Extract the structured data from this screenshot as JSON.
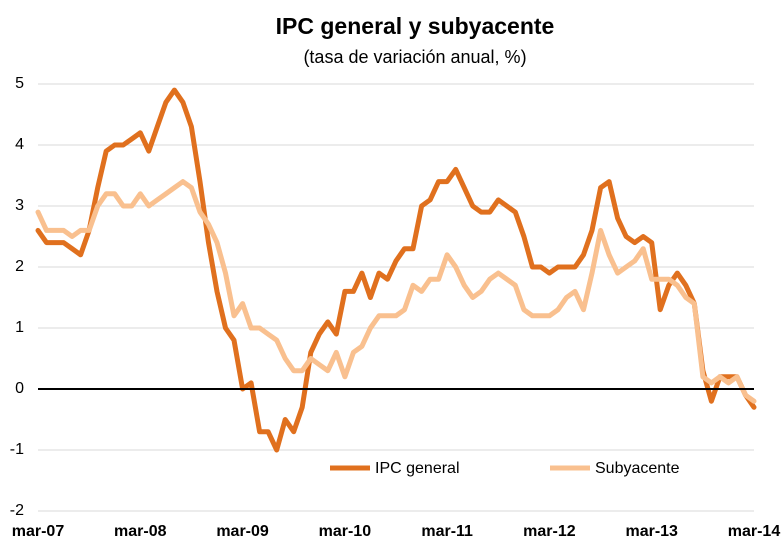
{
  "chart_data": {
    "type": "line",
    "title": "IPC general y subyacente",
    "subtitle": "(tasa de variación anual, %)",
    "categories": [
      "mar-07",
      null,
      null,
      null,
      null,
      null,
      null,
      null,
      null,
      null,
      null,
      null,
      "mar-08",
      null,
      null,
      null,
      null,
      null,
      null,
      null,
      null,
      null,
      null,
      null,
      "mar-09",
      null,
      null,
      null,
      null,
      null,
      null,
      null,
      null,
      null,
      null,
      null,
      "mar-10",
      null,
      null,
      null,
      null,
      null,
      null,
      null,
      null,
      null,
      null,
      null,
      "mar-11",
      null,
      null,
      null,
      null,
      null,
      null,
      null,
      null,
      null,
      null,
      null,
      "mar-12",
      null,
      null,
      null,
      null,
      null,
      null,
      null,
      null,
      null,
      null,
      null,
      "mar-13",
      null,
      null,
      null,
      null,
      null,
      null,
      null,
      null,
      null,
      null,
      null,
      "mar-14"
    ],
    "series": [
      {
        "name": "IPC general",
        "color": "#e0701e",
        "values": [
          2.6,
          2.4,
          2.4,
          2.4,
          2.3,
          2.2,
          2.6,
          3.3,
          3.9,
          4.0,
          4.0,
          4.1,
          4.2,
          3.9,
          4.3,
          4.7,
          4.9,
          4.7,
          4.3,
          3.4,
          2.4,
          1.6,
          1.0,
          0.8,
          0.0,
          0.1,
          -0.7,
          -0.7,
          -1.0,
          -0.5,
          -0.7,
          -0.3,
          0.6,
          0.9,
          1.1,
          0.9,
          1.6,
          1.6,
          1.9,
          1.5,
          1.9,
          1.8,
          2.1,
          2.3,
          2.3,
          3.0,
          3.1,
          3.4,
          3.4,
          3.6,
          3.3,
          3.0,
          2.9,
          2.9,
          3.1,
          3.0,
          2.9,
          2.5,
          2.0,
          2.0,
          1.9,
          2.0,
          2.0,
          2.0,
          2.2,
          2.6,
          3.3,
          3.4,
          2.8,
          2.5,
          2.4,
          2.5,
          2.4,
          1.3,
          1.7,
          1.9,
          1.7,
          1.4,
          0.3,
          -0.2,
          0.2,
          0.2,
          0.2,
          -0.1,
          -0.3
        ]
      },
      {
        "name": "Subyacente",
        "color": "#f9c08f",
        "values": [
          2.9,
          2.6,
          2.6,
          2.6,
          2.5,
          2.6,
          2.6,
          3.0,
          3.2,
          3.2,
          3.0,
          3.0,
          3.2,
          3.0,
          3.1,
          3.2,
          3.3,
          3.4,
          3.3,
          2.9,
          2.7,
          2.4,
          1.9,
          1.2,
          1.4,
          1.0,
          1.0,
          0.9,
          0.8,
          0.5,
          0.3,
          0.3,
          0.5,
          0.4,
          0.3,
          0.6,
          0.2,
          0.6,
          0.7,
          1.0,
          1.2,
          1.2,
          1.2,
          1.3,
          1.7,
          1.6,
          1.8,
          1.8,
          2.2,
          2.0,
          1.7,
          1.5,
          1.6,
          1.8,
          1.9,
          1.8,
          1.7,
          1.3,
          1.2,
          1.2,
          1.2,
          1.3,
          1.5,
          1.6,
          1.3,
          1.9,
          2.6,
          2.2,
          1.9,
          2.0,
          2.1,
          2.3,
          1.8,
          1.8,
          1.8,
          1.7,
          1.5,
          1.4,
          0.2,
          0.1,
          0.2,
          0.1,
          0.2,
          -0.1,
          -0.2
        ]
      }
    ],
    "ylim": [
      -2,
      5
    ],
    "yticks": [
      -2,
      -1,
      0,
      1,
      2,
      3,
      4,
      5
    ],
    "grid": true
  }
}
